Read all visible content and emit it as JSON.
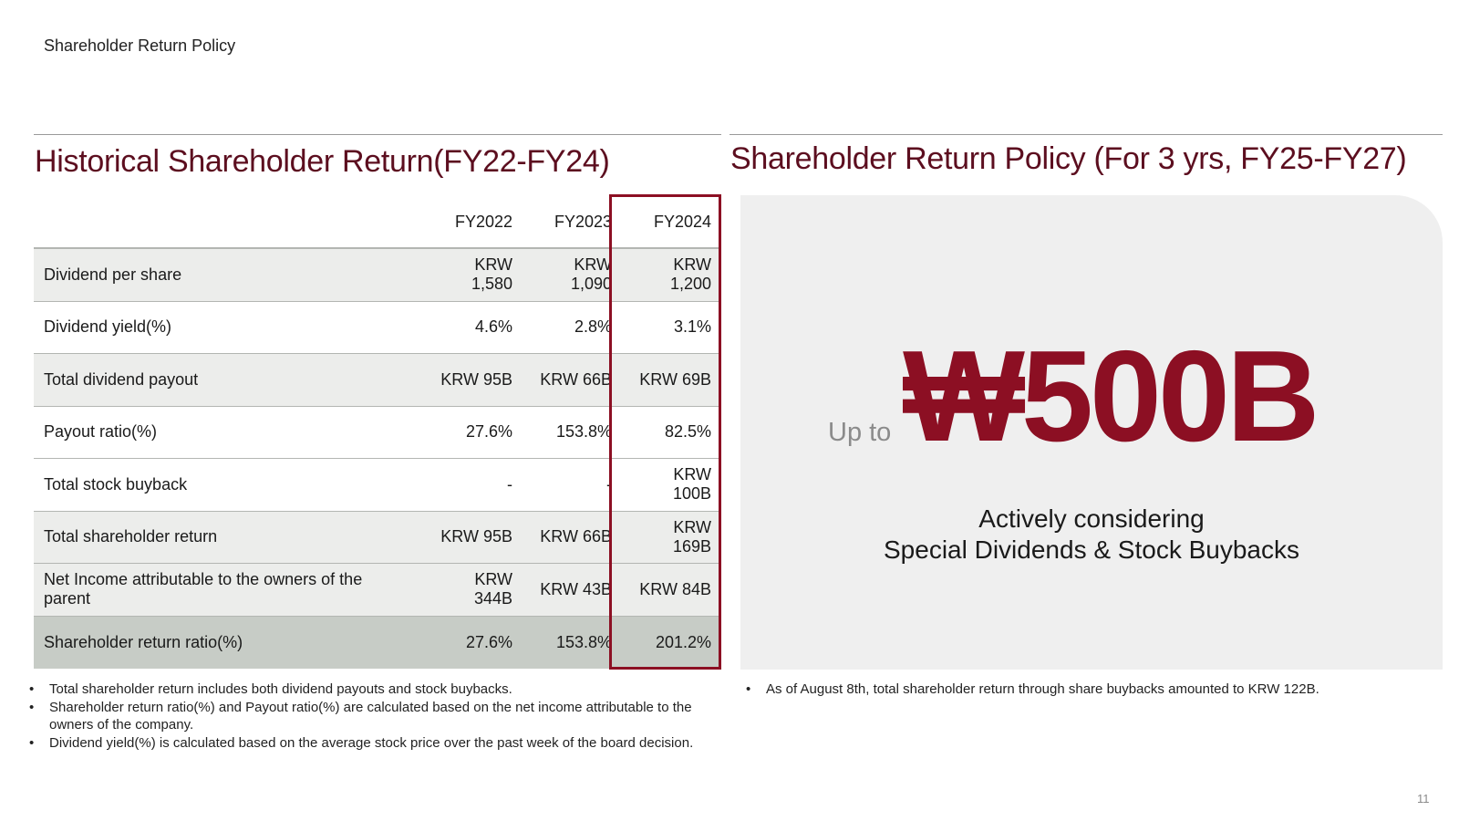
{
  "header": {
    "title": "Shareholder Return Policy"
  },
  "left": {
    "title": "Historical Shareholder Return(FY22-FY24)",
    "table": {
      "columns": [
        "FY2022",
        "FY2023",
        "FY2024"
      ],
      "rows": [
        {
          "label": "Dividend per share",
          "values": [
            "KRW 1,580",
            "KRW 1,090",
            "KRW 1,200"
          ]
        },
        {
          "label": "Dividend yield(%)",
          "values": [
            "4.6%",
            "2.8%",
            "3.1%"
          ]
        },
        {
          "label": "Total dividend payout",
          "values": [
            "KRW 95B",
            "KRW 66B",
            "KRW 69B"
          ]
        },
        {
          "label": "Payout ratio(%)",
          "values": [
            "27.6%",
            "153.8%",
            "82.5%"
          ]
        },
        {
          "label": "Total stock buyback",
          "values": [
            "-",
            "-",
            "KRW 100B"
          ]
        },
        {
          "label": "Total shareholder return",
          "values": [
            "KRW 95B",
            "KRW 66B",
            "KRW 169B"
          ]
        },
        {
          "label": "Net Income attributable to the owners of the parent",
          "values": [
            "KRW 344B",
            "KRW 43B",
            "KRW 84B"
          ]
        },
        {
          "label": "Shareholder return ratio(%)",
          "values": [
            "27.6%",
            "153.8%",
            "201.2%"
          ]
        }
      ]
    },
    "notes": [
      "Total shareholder return includes both dividend payouts and stock buybacks.",
      "Shareholder return ratio(%) and Payout ratio(%)  are calculated based on the net income attributable to the owners of the company.",
      "Dividend yield(%) is calculated based on the average stock price over the past week of the board decision."
    ]
  },
  "right": {
    "title": "Shareholder Return Policy (For 3 yrs, FY25-FY27)",
    "up_to": "Up to",
    "amount": "₩500B",
    "policy_line1": "Actively considering",
    "policy_line2": "Special Dividends & Stock Buybacks",
    "notes": [
      "As of August 8th, total shareholder return through share buybacks amounted to KRW 122B."
    ]
  },
  "colors": {
    "accent": "#8c0f23",
    "title": "#5c0e1f",
    "row_shade": "#ecedeb",
    "row_total": "#c7ccc6",
    "panel": "#efefef"
  },
  "page_number": "11"
}
